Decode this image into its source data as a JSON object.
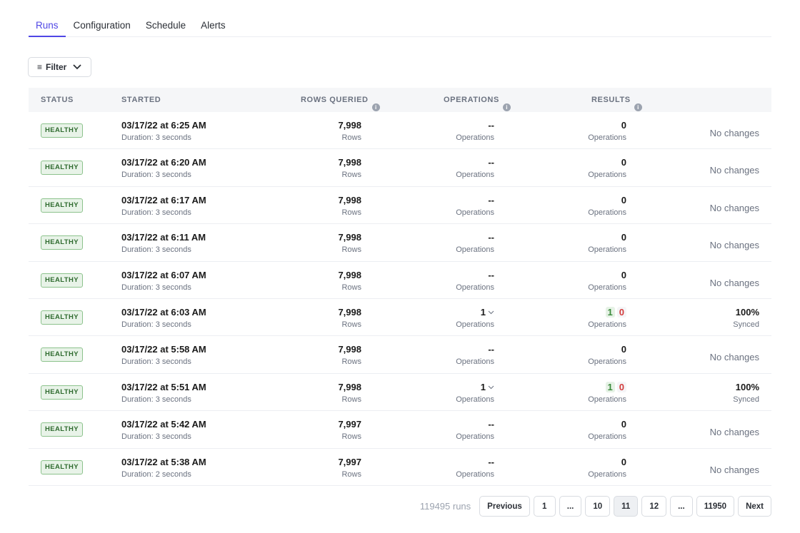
{
  "tabs": [
    "Runs",
    "Configuration",
    "Schedule",
    "Alerts"
  ],
  "active_tab": 0,
  "filter": {
    "label": "Filter"
  },
  "table": {
    "headers": {
      "status": "STATUS",
      "started": "STARTED",
      "rows": "ROWS QUERIED",
      "operations": "OPERATIONS",
      "results": "RESULTS"
    },
    "rows": [
      {
        "status": "HEALTHY",
        "started": "03/17/22 at 6:25 AM",
        "duration": "Duration: 3 seconds",
        "rows": "7,998",
        "rows_label": "Rows",
        "ops": "--",
        "ops_label": "Operations",
        "results": "0",
        "results_label": "Operations",
        "outcome": "No changes"
      },
      {
        "status": "HEALTHY",
        "started": "03/17/22 at 6:20 AM",
        "duration": "Duration: 3 seconds",
        "rows": "7,998",
        "rows_label": "Rows",
        "ops": "--",
        "ops_label": "Operations",
        "results": "0",
        "results_label": "Operations",
        "outcome": "No changes"
      },
      {
        "status": "HEALTHY",
        "started": "03/17/22 at 6:17 AM",
        "duration": "Duration: 3 seconds",
        "rows": "7,998",
        "rows_label": "Rows",
        "ops": "--",
        "ops_label": "Operations",
        "results": "0",
        "results_label": "Operations",
        "outcome": "No changes"
      },
      {
        "status": "HEALTHY",
        "started": "03/17/22 at 6:11 AM",
        "duration": "Duration: 3 seconds",
        "rows": "7,998",
        "rows_label": "Rows",
        "ops": "--",
        "ops_label": "Operations",
        "results": "0",
        "results_label": "Operations",
        "outcome": "No changes"
      },
      {
        "status": "HEALTHY",
        "started": "03/17/22 at 6:07 AM",
        "duration": "Duration: 3 seconds",
        "rows": "7,998",
        "rows_label": "Rows",
        "ops": "--",
        "ops_label": "Operations",
        "results": "0",
        "results_label": "Operations",
        "outcome": "No changes"
      },
      {
        "status": "HEALTHY",
        "started": "03/17/22 at 6:03 AM",
        "duration": "Duration: 3 seconds",
        "rows": "7,998",
        "rows_label": "Rows",
        "ops": "1",
        "ops_label": "Operations",
        "ops_expand": true,
        "results_success": "1",
        "results_fail": "0",
        "results_label": "Operations",
        "synced": "100%",
        "synced_label": "Synced"
      },
      {
        "status": "HEALTHY",
        "started": "03/17/22 at 5:58 AM",
        "duration": "Duration: 3 seconds",
        "rows": "7,998",
        "rows_label": "Rows",
        "ops": "--",
        "ops_label": "Operations",
        "results": "0",
        "results_label": "Operations",
        "outcome": "No changes"
      },
      {
        "status": "HEALTHY",
        "started": "03/17/22 at 5:51 AM",
        "duration": "Duration: 3 seconds",
        "rows": "7,998",
        "rows_label": "Rows",
        "ops": "1",
        "ops_label": "Operations",
        "ops_expand": true,
        "results_success": "1",
        "results_fail": "0",
        "results_label": "Operations",
        "synced": "100%",
        "synced_label": "Synced"
      },
      {
        "status": "HEALTHY",
        "started": "03/17/22 at 5:42 AM",
        "duration": "Duration: 3 seconds",
        "rows": "7,997",
        "rows_label": "Rows",
        "ops": "--",
        "ops_label": "Operations",
        "results": "0",
        "results_label": "Operations",
        "outcome": "No changes"
      },
      {
        "status": "HEALTHY",
        "started": "03/17/22 at 5:38 AM",
        "duration": "Duration: 2 seconds",
        "rows": "7,997",
        "rows_label": "Rows",
        "ops": "--",
        "ops_label": "Operations",
        "results": "0",
        "results_label": "Operations",
        "outcome": "No changes"
      }
    ]
  },
  "pagination": {
    "total": "119495 runs",
    "previous": "Previous",
    "next": "Next",
    "pages": [
      "1",
      "...",
      "10",
      "11",
      "12",
      "...",
      "11950"
    ],
    "current": "11"
  },
  "colors": {
    "accent": "#4f46e5",
    "healthy": "#2f6b2f",
    "success": "#3c8a3c",
    "fail": "#d23c3c"
  }
}
